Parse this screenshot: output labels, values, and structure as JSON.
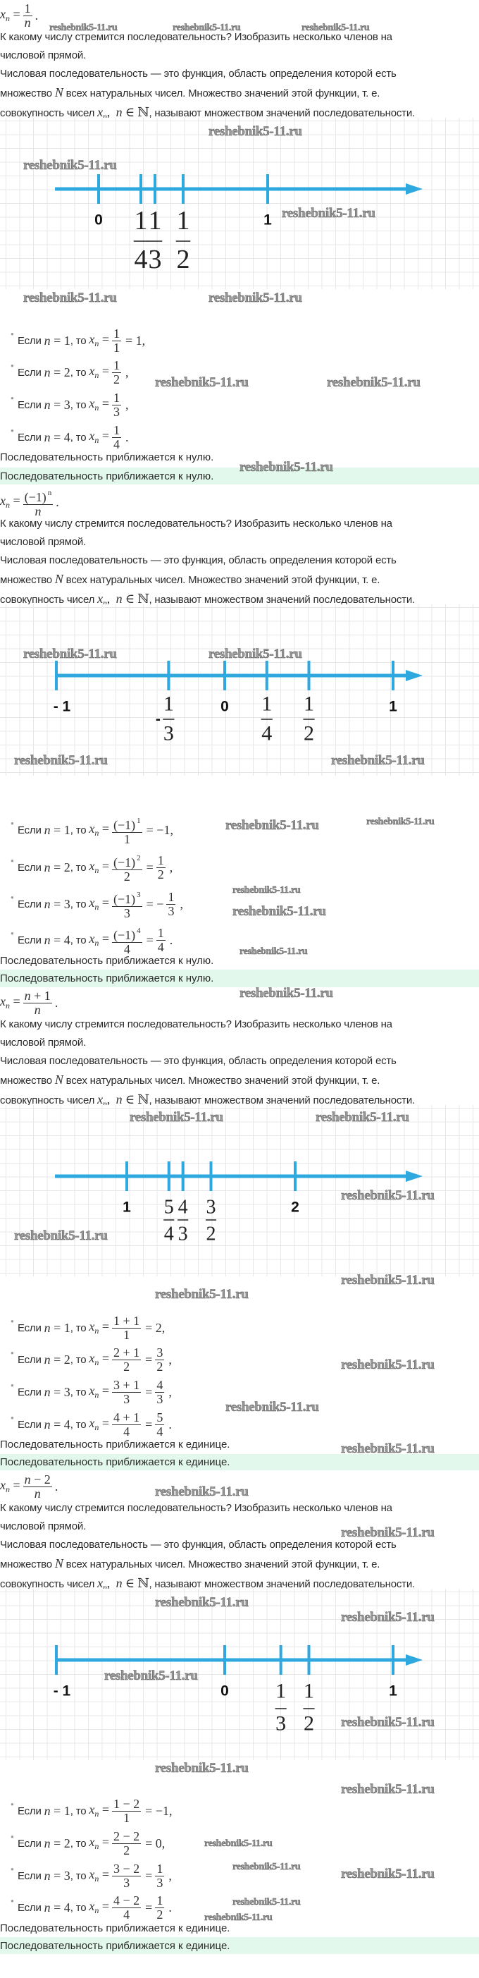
{
  "watermark": "reshebnik5-11.ru",
  "labels": {
    "if": "Если ",
    "then": ", то "
  },
  "question": [
    "К какому числу стремится последовательность? Изобразить несколько членов на",
    "числовой прямой."
  ],
  "definition": {
    "line1": "Числовая последовательность — это функция, область определения которой есть",
    "line2_a": "множество ",
    "line2_math": "N",
    "line2_b": " всех натуральных чисел. Множество значений этой функции, т. е.",
    "line3_a": "совокупность чисел ",
    "line3_math": "xₙ,  n ∈ ℕ",
    "line3_b": ", называют множеством значений последовательности."
  },
  "colors": {
    "axis": "#2fa8e0",
    "answer_bg": "#e2f8ec",
    "grid": "#e7e7e7"
  },
  "sections": [
    {
      "formula": {
        "lhs": "xₙ =",
        "num": "1",
        "num_sup": "",
        "den": "n",
        "tail": "."
      },
      "number_line": [
        {
          "value": 0,
          "label": "0"
        },
        {
          "value": 0.25,
          "num": "1",
          "den": "4"
        },
        {
          "value": 0.3333,
          "num": "1",
          "den": "3"
        },
        {
          "value": 0.5,
          "num": "1",
          "den": "2"
        },
        {
          "value": 1,
          "label": "1"
        }
      ],
      "bullets": [
        {
          "cond": "n = 1",
          "xn": "xₙ =",
          "expr": [
            {
              "f": {
                "num": "1",
                "den": "1"
              }
            },
            {
              "m": "= 1,"
            }
          ]
        },
        {
          "cond": "n = 2",
          "xn": "xₙ =",
          "expr": [
            {
              "f": {
                "num": "1",
                "den": "2"
              }
            },
            {
              "m": ","
            }
          ]
        },
        {
          "cond": "n = 3",
          "xn": "xₙ =",
          "expr": [
            {
              "f": {
                "num": "1",
                "den": "3"
              }
            },
            {
              "m": ","
            }
          ]
        },
        {
          "cond": "n = 4",
          "xn": "xₙ =",
          "expr": [
            {
              "f": {
                "num": "1",
                "den": "4"
              }
            },
            {
              "m": "."
            }
          ]
        }
      ],
      "result": "Последовательность приближается к нулю.",
      "answer": "Последовательность приближается к нулю."
    },
    {
      "formula": {
        "lhs": "xₙ =",
        "num": "(−1)",
        "num_sup": "n",
        "den": "n",
        "tail": "."
      },
      "number_line": [
        {
          "value": -1,
          "label": "- 1"
        },
        {
          "value": -0.3333,
          "sign": "-",
          "num": "1",
          "den": "3"
        },
        {
          "value": 0,
          "label": "0"
        },
        {
          "value": 0.25,
          "num": "1",
          "den": "4"
        },
        {
          "value": 0.5,
          "num": "1",
          "den": "2"
        },
        {
          "value": 1,
          "label": "1"
        }
      ],
      "bullets": [
        {
          "cond": "n = 1",
          "xn": "xₙ =",
          "expr": [
            {
              "f": {
                "num": "(−1)",
                "sup": "1",
                "den": "1"
              }
            },
            {
              "m": "= −1,"
            }
          ]
        },
        {
          "cond": "n = 2",
          "xn": "xₙ =",
          "expr": [
            {
              "f": {
                "num": "(−1)",
                "sup": "2",
                "den": "2"
              }
            },
            {
              "m": "="
            },
            {
              "f": {
                "num": "1",
                "den": "2"
              }
            },
            {
              "m": ","
            }
          ]
        },
        {
          "cond": "n = 3",
          "xn": "xₙ =",
          "expr": [
            {
              "f": {
                "num": "(−1)",
                "sup": "3",
                "den": "3"
              }
            },
            {
              "m": "= −"
            },
            {
              "f": {
                "num": "1",
                "den": "3"
              }
            },
            {
              "m": ","
            }
          ]
        },
        {
          "cond": "n = 4",
          "xn": "xₙ =",
          "expr": [
            {
              "f": {
                "num": "(−1)",
                "sup": "4",
                "den": "4"
              }
            },
            {
              "m": "="
            },
            {
              "f": {
                "num": "1",
                "den": "4"
              }
            },
            {
              "m": "."
            }
          ]
        }
      ],
      "result": "Последовательность приближается к нулю.",
      "answer": "Последовательность приближается к нулю."
    },
    {
      "formula": {
        "lhs": "xₙ =",
        "num": "n + 1",
        "num_sup": "",
        "den": "n",
        "tail": "."
      },
      "number_line": [
        {
          "value": 1,
          "label": "1"
        },
        {
          "value": 1.25,
          "num": "5",
          "den": "4"
        },
        {
          "value": 1.3333,
          "num": "4",
          "den": "3"
        },
        {
          "value": 1.5,
          "num": "3",
          "den": "2"
        },
        {
          "value": 2,
          "label": "2"
        }
      ],
      "bullets": [
        {
          "cond": "n = 1",
          "xn": "xₙ =",
          "expr": [
            {
              "f": {
                "num": "1 + 1",
                "den": "1"
              }
            },
            {
              "m": "= 2,"
            }
          ]
        },
        {
          "cond": "n = 2",
          "xn": "xₙ =",
          "expr": [
            {
              "f": {
                "num": "2 + 1",
                "den": "2"
              }
            },
            {
              "m": "="
            },
            {
              "f": {
                "num": "3",
                "den": "2"
              }
            },
            {
              "m": ","
            }
          ]
        },
        {
          "cond": "n = 3",
          "xn": "xₙ =",
          "expr": [
            {
              "f": {
                "num": "3 + 1",
                "den": "3"
              }
            },
            {
              "m": "="
            },
            {
              "f": {
                "num": "4",
                "den": "3"
              }
            },
            {
              "m": ","
            }
          ]
        },
        {
          "cond": "n = 4",
          "xn": "xₙ =",
          "expr": [
            {
              "f": {
                "num": "4 + 1",
                "den": "4"
              }
            },
            {
              "m": "="
            },
            {
              "f": {
                "num": "5",
                "den": "4"
              }
            },
            {
              "m": "."
            }
          ]
        }
      ],
      "result": "Последовательность приближается к единице.",
      "answer": "Последовательность приближается к единице."
    },
    {
      "formula": {
        "lhs": "xₙ =",
        "num": "n − 2",
        "num_sup": "",
        "den": "n",
        "tail": "."
      },
      "number_line": [
        {
          "value": -1,
          "label": "- 1"
        },
        {
          "value": 0,
          "label": "0"
        },
        {
          "value": 0.3333,
          "num": "1",
          "den": "3"
        },
        {
          "value": 0.5,
          "num": "1",
          "den": "2"
        },
        {
          "value": 1,
          "label": "1"
        }
      ],
      "bullets": [
        {
          "cond": "n = 1",
          "xn": "xₙ =",
          "expr": [
            {
              "f": {
                "num": "1 − 2",
                "den": "1"
              }
            },
            {
              "m": "= −1,"
            }
          ]
        },
        {
          "cond": "n = 2",
          "xn": "xₙ =",
          "expr": [
            {
              "f": {
                "num": "2 − 2",
                "den": "2"
              }
            },
            {
              "m": "= 0,"
            }
          ]
        },
        {
          "cond": "n = 3",
          "xn": "xₙ =",
          "expr": [
            {
              "f": {
                "num": "3 − 2",
                "den": "3"
              }
            },
            {
              "m": "="
            },
            {
              "f": {
                "num": "1",
                "den": "3"
              }
            },
            {
              "m": ","
            }
          ]
        },
        {
          "cond": "n = 4",
          "xn": "xₙ =",
          "expr": [
            {
              "f": {
                "num": "4 − 2",
                "den": "4"
              }
            },
            {
              "m": "="
            },
            {
              "f": {
                "num": "1",
                "den": "2"
              }
            },
            {
              "m": "."
            }
          ]
        }
      ],
      "result": "Последовательность приближается к единице.",
      "answer": "Последовательность приближается к единице."
    }
  ]
}
